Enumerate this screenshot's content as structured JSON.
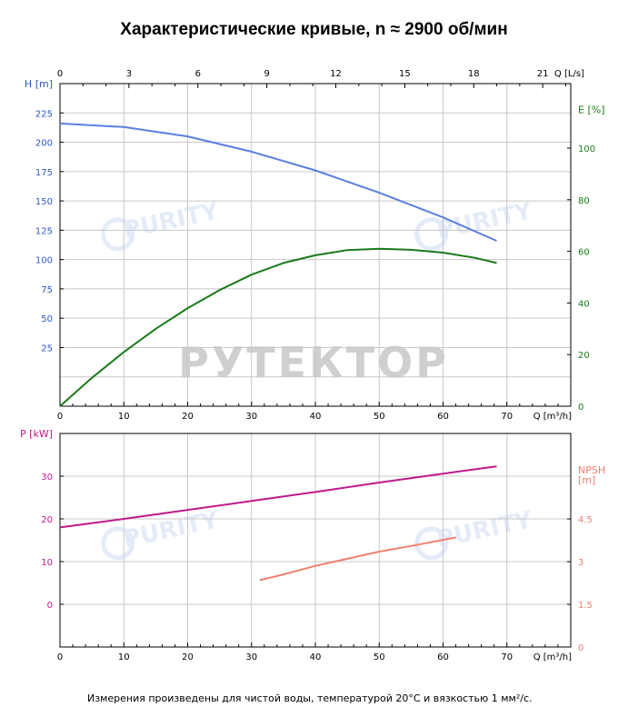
{
  "title": "Характеристические кривые, n ≈ 2900 об/мин",
  "note": "Измерения произведены для чистой воды, температурой 20°С и вязкостью 1 мм²/с.",
  "watermarks": [
    "PURITY",
    "PURITY",
    "PURITY",
    "PURITY",
    "РУТЕКТОР"
  ],
  "colors": {
    "head": "#5b7fe0",
    "efficiency": "#1a7a1a",
    "power": "#c0198a",
    "npsh": "#f08070",
    "axis_blue": "#2f57c8",
    "axis_green": "#1a7a1a",
    "axis_magenta": "#c0198a",
    "axis_salmon": "#f08070",
    "axis_black": "#000000",
    "grid": "#c8c8c8"
  },
  "chart_data": [
    {
      "type": "line",
      "panel": "top",
      "axes": {
        "x_bottom": {
          "label": "Q [m³/h]",
          "lim": [
            0,
            80
          ],
          "ticks": [
            0,
            10,
            20,
            30,
            40,
            50,
            60,
            70
          ]
        },
        "x_top": {
          "label": "Q [L/s]",
          "lim": [
            0,
            22.22
          ],
          "ticks": [
            0,
            3,
            6,
            9,
            12,
            15,
            18,
            21
          ]
        },
        "y_left": {
          "label": "H [m]",
          "lim": [
            -25,
            250
          ],
          "ticks": [
            25,
            50,
            75,
            100,
            125,
            150,
            175,
            200,
            225
          ]
        },
        "y_right": {
          "label": "E [%]",
          "lim": [
            0,
            125
          ],
          "ticks": [
            0,
            20,
            40,
            60,
            80,
            100
          ]
        }
      },
      "grid": true,
      "series": [
        {
          "axis": "y_left",
          "color": "head",
          "points": [
            [
              0,
              216
            ],
            [
              10,
              213
            ],
            [
              20,
              205
            ],
            [
              30,
              192
            ],
            [
              40,
              176
            ],
            [
              50,
              157
            ],
            [
              60,
              136
            ],
            [
              68.4,
              116
            ]
          ]
        },
        {
          "axis": "y_right",
          "color": "efficiency",
          "points": [
            [
              0,
              0
            ],
            [
              5,
              11
            ],
            [
              10,
              21
            ],
            [
              15,
              30
            ],
            [
              20,
              38
            ],
            [
              25,
              45
            ],
            [
              30,
              51
            ],
            [
              35,
              55.5
            ],
            [
              40,
              58.5
            ],
            [
              45,
              60.5
            ],
            [
              50,
              61
            ],
            [
              55,
              60.6
            ],
            [
              60,
              59.5
            ],
            [
              65,
              57.5
            ],
            [
              68.4,
              55.5
            ]
          ]
        }
      ]
    },
    {
      "type": "line",
      "panel": "bottom",
      "axes": {
        "x_bottom": {
          "label": "Q [m³/h]",
          "lim": [
            0,
            80
          ],
          "ticks": [
            0,
            10,
            20,
            30,
            40,
            50,
            60,
            70
          ]
        },
        "y_left": {
          "label": "P [kW]",
          "lim": [
            -10,
            40
          ],
          "ticks": [
            0,
            10,
            20,
            30
          ]
        },
        "y_right": {
          "label": "NPSH [m]",
          "lim": [
            0,
            7.5
          ],
          "ticks": [
            0,
            1.5,
            3,
            4.5
          ]
        }
      },
      "grid": true,
      "series": [
        {
          "axis": "y_left",
          "color": "power",
          "points": [
            [
              0,
              18
            ],
            [
              10,
              20
            ],
            [
              20,
              22.1
            ],
            [
              30,
              24.2
            ],
            [
              40,
              26.3
            ],
            [
              50,
              28.5
            ],
            [
              60,
              30.6
            ],
            [
              68.4,
              32.3
            ]
          ]
        },
        {
          "axis": "y_right",
          "color": "npsh",
          "points": [
            [
              31.3,
              2.35
            ],
            [
              35,
              2.55
            ],
            [
              40,
              2.85
            ],
            [
              45,
              3.1
            ],
            [
              50,
              3.35
            ],
            [
              55,
              3.55
            ],
            [
              62,
              3.85
            ]
          ]
        }
      ]
    }
  ]
}
